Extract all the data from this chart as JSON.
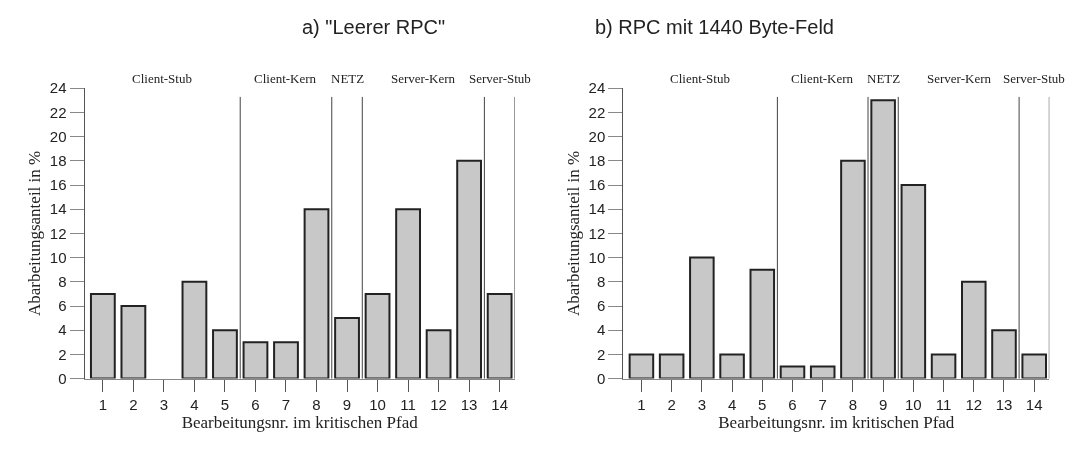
{
  "chart_data": [
    {
      "type": "bar",
      "title": "a) \"Leerer RPC\"",
      "xlabel": "Bearbeitungsnr. im kritischen Pfad",
      "ylabel": "Abarbeitungsanteil in %",
      "x": [
        1,
        2,
        3,
        4,
        5,
        6,
        7,
        8,
        9,
        10,
        11,
        12,
        13,
        14
      ],
      "xlim": [
        0.4,
        14.5
      ],
      "xticks": [
        1,
        2,
        3,
        4,
        5,
        6,
        7,
        8,
        9,
        10,
        11,
        12,
        13,
        14
      ],
      "values": [
        7,
        6,
        0,
        8,
        4,
        3,
        3,
        14,
        5,
        7,
        14,
        4,
        18,
        7
      ],
      "color": "#c8c8c8",
      "ylim": [
        0,
        24
      ],
      "yticks": [
        0,
        2,
        4,
        6,
        8,
        10,
        12,
        14,
        16,
        18,
        20,
        22,
        24
      ],
      "annotations": [
        "Client-Stub",
        "Client-Kern",
        "NETZ",
        "Server-Kern",
        "Server-Stub"
      ],
      "ref_lines": [
        {
          "axis": "x",
          "value": 5.5
        },
        {
          "axis": "x",
          "value": 8.5
        },
        {
          "axis": "x",
          "value": 9.5
        },
        {
          "axis": "x",
          "value": 13.5
        },
        {
          "axis": "x",
          "value": 14.5
        }
      ]
    },
    {
      "type": "bar",
      "title": "b) RPC mit 1440 Byte-Feld",
      "xlabel": "Bearbeitungsnr. im kritischen Pfad",
      "ylabel": "Abarbeitungsanteil in %",
      "x": [
        1,
        2,
        3,
        4,
        5,
        6,
        7,
        8,
        9,
        10,
        11,
        12,
        13,
        14
      ],
      "xlim": [
        0.4,
        14.5
      ],
      "xticks": [
        1,
        2,
        3,
        4,
        5,
        6,
        7,
        8,
        9,
        10,
        11,
        12,
        13,
        14
      ],
      "values": [
        2,
        2,
        10,
        2,
        9,
        1,
        1,
        18,
        23,
        16,
        2,
        8,
        4,
        2
      ],
      "color": "#c8c8c8",
      "ylim": [
        0,
        24
      ],
      "yticks": [
        0,
        2,
        4,
        6,
        8,
        10,
        12,
        14,
        16,
        18,
        20,
        22,
        24
      ],
      "annotations": [
        "Client-Stub",
        "Client-Kern",
        "NETZ",
        "Server-Kern",
        "Server-Stub"
      ],
      "ref_lines": [
        {
          "axis": "x",
          "value": 5.5
        },
        {
          "axis": "x",
          "value": 8.5
        },
        {
          "axis": "x",
          "value": 9.5
        },
        {
          "axis": "x",
          "value": 13.5
        },
        {
          "axis": "x",
          "value": 14.5
        }
      ]
    }
  ]
}
